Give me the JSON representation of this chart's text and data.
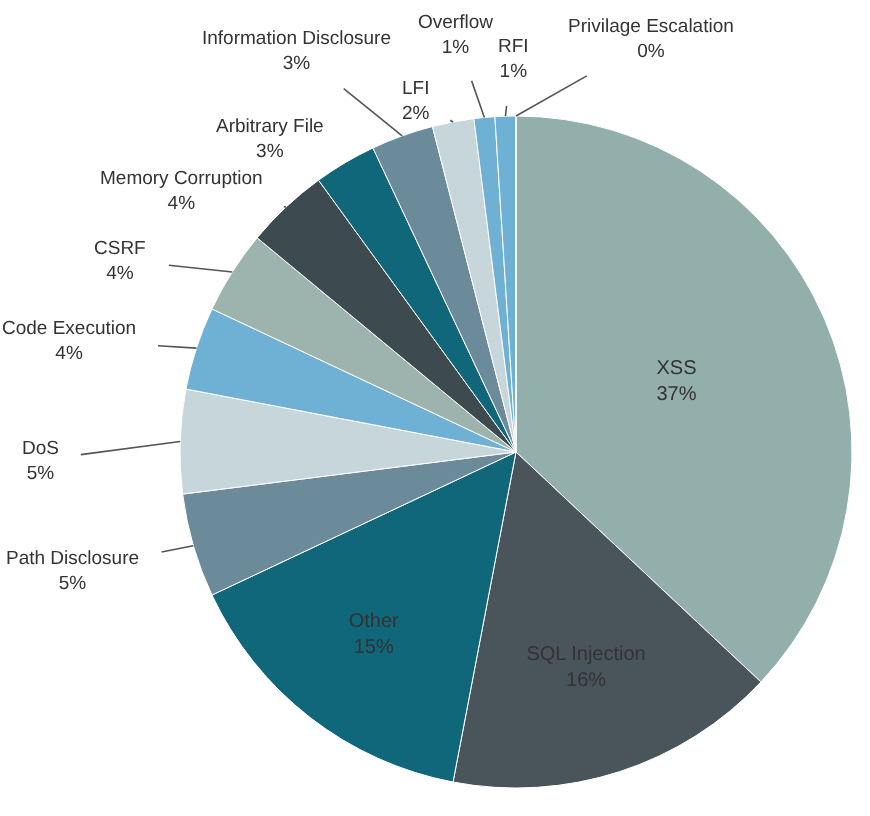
{
  "chart_data": {
    "type": "pie",
    "categories": [
      "XSS",
      "SQL Injection",
      "Other",
      "Path Disclosure",
      "DoS",
      "Code Execution",
      "CSRF",
      "Memory Corruption",
      "Arbitrary File",
      "Information Disclosure",
      "LFI",
      "Overflow",
      "RFI",
      "Privilage Escalation"
    ],
    "values": [
      37,
      16,
      15,
      5,
      5,
      4,
      4,
      4,
      3,
      3,
      2,
      1,
      1,
      0
    ],
    "value_labels": [
      "37%",
      "16%",
      "15%",
      "5%",
      "5%",
      "4%",
      "4%",
      "4%",
      "3%",
      "3%",
      "2%",
      "1%",
      "1%",
      "0%"
    ],
    "colors": [
      "#93afab",
      "#4a555b",
      "#10677a",
      "#6c8b9a",
      "#c6d6db",
      "#6fb1d4",
      "#9cb4ad",
      "#3d4a50",
      "#10677a",
      "#6c8b9a",
      "#c6d6db",
      "#6fb1d4",
      "#6fb1d4",
      "#f5a623"
    ],
    "legend": false
  }
}
